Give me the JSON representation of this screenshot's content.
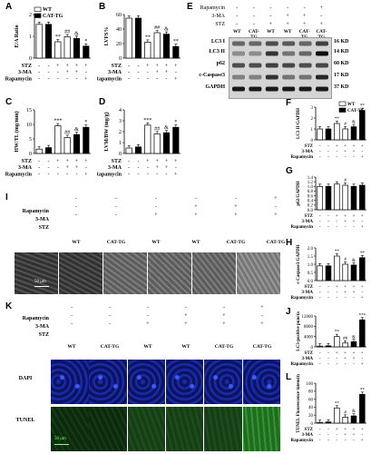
{
  "panels": {
    "A": {
      "letter": "A",
      "ylabel": "E/A Ratio",
      "yticks": [
        "0",
        "1",
        "2"
      ],
      "legend": [
        "WT",
        "CAT-TG"
      ],
      "row_labels": [
        "STZ",
        "3-MA",
        "Rapamycin"
      ],
      "rows": [
        [
          "-",
          "-",
          "+",
          "+",
          "+",
          "+"
        ],
        [
          "-",
          "-",
          "-",
          "+",
          "+",
          "-"
        ],
        [
          "-",
          "-",
          "-",
          "-",
          "-",
          "+"
        ]
      ],
      "marks": [
        "**",
        "##",
        "&",
        "*"
      ]
    },
    "B": {
      "letter": "B",
      "ylabel": "LVFS%",
      "yticks": [
        "0",
        "20",
        "40",
        "60"
      ],
      "row_labels": [
        "STZ",
        "3-MA",
        "Rapamycin"
      ],
      "rows": [
        [
          "-",
          "-",
          "+",
          "+",
          "+",
          "+"
        ],
        [
          "-",
          "-",
          "-",
          "+",
          "+",
          "-"
        ],
        [
          "-",
          "-",
          "-",
          "-",
          "-",
          "+"
        ]
      ],
      "marks": [
        "**",
        "##",
        "&",
        "**"
      ]
    },
    "C": {
      "letter": "C",
      "ylabel": "HW/TL (mg/mm)",
      "yticks": [
        "0",
        "5",
        "10",
        "15"
      ],
      "row_labels": [
        "STZ",
        "3-MA",
        "Rapamycin"
      ],
      "rows": [
        [
          "-",
          "-",
          "+",
          "+",
          "+",
          "+"
        ],
        [
          "-",
          "-",
          "-",
          "+",
          "+",
          "-"
        ],
        [
          "-",
          "-",
          "-",
          "-",
          "-",
          "+"
        ]
      ],
      "marks": [
        "***",
        "##",
        "&",
        "*"
      ]
    },
    "D": {
      "letter": "D",
      "ylabel": "LVM/BW (mg/g)",
      "yticks": [
        "0",
        "1",
        "2",
        "3",
        "4"
      ],
      "row_labels": [
        "STZ",
        "3-MA",
        "Rapamycin"
      ],
      "rows": [
        [
          "-",
          "-",
          "+",
          "+",
          "+",
          "+"
        ],
        [
          "-",
          "-",
          "-",
          "+",
          "+",
          "-"
        ],
        [
          "-",
          "-",
          "-",
          "-",
          "-",
          "+"
        ]
      ],
      "marks": [
        "***",
        "##",
        "&",
        "*"
      ]
    },
    "E": {
      "letter": "E",
      "row_labels": [
        "Rapamycin",
        "3-MA",
        "STZ"
      ],
      "rows": [
        [
          "-",
          "-",
          "-",
          "-",
          "-",
          "+"
        ],
        [
          "-",
          "-",
          "-",
          "+",
          "+",
          "-"
        ],
        [
          "-",
          "-",
          "+",
          "+",
          "+",
          "+"
        ]
      ],
      "cols": [
        "WT",
        "CAT-TG",
        "WT",
        "WT",
        "CAT-TG",
        "CAT-TG"
      ],
      "bands": [
        {
          "name": "LC3 I",
          "kd": "16 KD"
        },
        {
          "name": "LC3 II",
          "kd": "14 KD"
        },
        {
          "name": "p62",
          "kd": "60 KD"
        },
        {
          "name": "c-Caspase3",
          "kd": "17 KD"
        },
        {
          "name": "GAPDH",
          "kd": "37 KD"
        }
      ]
    },
    "F": {
      "letter": "F",
      "ylabel": "LC3 II/GAPDH",
      "yticks": [
        "0",
        "1",
        "2",
        "3"
      ],
      "legend": [
        "WT",
        "CAT-TG"
      ],
      "row_labels": [
        "STZ",
        "3-MA",
        "Rapamycin"
      ],
      "marks": [
        "**",
        "#",
        "&",
        "**"
      ]
    },
    "G": {
      "letter": "G",
      "ylabel": "p62/GAPDH",
      "yticks": [
        "0.0",
        "0.2",
        "0.4",
        "0.6",
        "0.8",
        "1.0",
        "1.2",
        "1.4"
      ],
      "row_labels": [
        "STZ",
        "3-MA",
        "Rapamycin"
      ],
      "marks": [
        "#"
      ]
    },
    "H": {
      "letter": "H",
      "ylabel": "c-Caspase3/GAPDH",
      "yticks": [
        "0.0",
        "0.5",
        "1.0",
        "1.5",
        "2.0"
      ],
      "row_labels": [
        "STZ",
        "3-MA",
        "Rapamycin"
      ],
      "marks": [
        "**",
        "#",
        "&",
        "**"
      ]
    },
    "I": {
      "letter": "I",
      "row_labels": [
        "Rapamycin",
        "3-MA",
        "STZ"
      ],
      "rows": [
        [
          "-",
          "-",
          "-",
          "-",
          "-",
          "+"
        ],
        [
          "-",
          "-",
          "-",
          "+",
          "+",
          "-"
        ],
        [
          "-",
          "-",
          "+",
          "+",
          "+",
          "+"
        ]
      ],
      "cols": [
        "WT",
        "CAT-TG",
        "WT",
        "WT",
        "CAT-TG",
        "CAT-TG"
      ],
      "scalebar": "50 μm"
    },
    "J": {
      "letter": "J",
      "ylabel": "LC3-positive puncta",
      "yticks": [
        "0",
        "4000",
        "8000",
        "12000"
      ],
      "row_labels": [
        "STZ",
        "3-MA",
        "Rapamycin"
      ],
      "marks": [
        "**",
        "##",
        "&",
        "***"
      ]
    },
    "K": {
      "letter": "K",
      "row_labels": [
        "Rapamycin",
        "3-MA",
        "STZ"
      ],
      "rows": [
        [
          "-",
          "-",
          "-",
          "-",
          "-",
          "+"
        ],
        [
          "-",
          "-",
          "-",
          "+",
          "+",
          "-"
        ],
        [
          "-",
          "-",
          "+",
          "+",
          "+",
          "+"
        ]
      ],
      "cols": [
        "WT",
        "CAT-TG",
        "WT",
        "WT",
        "CAT-TG",
        "CAT-TG"
      ],
      "stains": [
        "DAPI",
        "TUNEL"
      ],
      "scalebar": "50 μm"
    },
    "L": {
      "letter": "L",
      "ylabel": "TUNEL Fluorescence intensity",
      "yticks": [
        "0",
        "20",
        "40",
        "60",
        "80",
        "100"
      ],
      "row_labels": [
        "STZ",
        "3-MA",
        "Rapamycin"
      ],
      "marks": [
        "**",
        "#",
        "&",
        "**"
      ]
    }
  },
  "chart_data": [
    {
      "type": "bar",
      "panel": "A",
      "ylabel": "E/A Ratio",
      "ylim": [
        0,
        2
      ],
      "series": [
        {
          "name": "WT",
          "values": [
            1.55,
            null,
            0.75,
            0.98,
            null,
            null
          ]
        },
        {
          "name": "CAT-TG",
          "values": [
            null,
            1.55,
            null,
            null,
            0.9,
            0.55
          ]
        }
      ]
    },
    {
      "type": "bar",
      "panel": "B",
      "ylabel": "LVFS%",
      "ylim": [
        0,
        60
      ],
      "series": [
        {
          "name": "WT",
          "values": [
            55,
            null,
            22,
            35,
            null,
            null
          ]
        },
        {
          "name": "CAT-TG",
          "values": [
            null,
            55,
            null,
            null,
            33,
            16
          ]
        }
      ]
    },
    {
      "type": "bar",
      "panel": "C",
      "ylabel": "HW/TL (mg/mm)",
      "ylim": [
        0,
        15
      ],
      "series": [
        {
          "name": "WT",
          "values": [
            1.5,
            null,
            9.5,
            5.5,
            null,
            null
          ]
        },
        {
          "name": "CAT-TG",
          "values": [
            null,
            2.0,
            null,
            null,
            6.5,
            9.0
          ]
        }
      ]
    },
    {
      "type": "bar",
      "panel": "D",
      "ylabel": "LVM/BW (mg/g)",
      "ylim": [
        0,
        4
      ],
      "series": [
        {
          "name": "WT",
          "values": [
            0.5,
            null,
            2.6,
            1.8,
            null,
            null
          ]
        },
        {
          "name": "CAT-TG",
          "values": [
            null,
            0.6,
            null,
            null,
            1.9,
            2.4
          ]
        }
      ]
    },
    {
      "type": "bar",
      "panel": "F",
      "ylabel": "LC3 II/GAPDH",
      "ylim": [
        0,
        3
      ],
      "series": [
        {
          "name": "WT",
          "values": [
            1.0,
            null,
            1.5,
            1.0,
            null,
            null
          ]
        },
        {
          "name": "CAT-TG",
          "values": [
            null,
            1.0,
            null,
            null,
            1.2,
            2.7
          ]
        }
      ]
    },
    {
      "type": "bar",
      "panel": "G",
      "ylabel": "p62/GAPDH",
      "ylim": [
        0,
        1.4
      ],
      "series": [
        {
          "name": "WT",
          "values": [
            1.0,
            null,
            1.1,
            1.05,
            null,
            null
          ]
        },
        {
          "name": "CAT-TG",
          "values": [
            null,
            1.0,
            null,
            null,
            1.0,
            1.05
          ]
        }
      ]
    },
    {
      "type": "bar",
      "panel": "H",
      "ylabel": "c-Caspase3/GAPDH",
      "ylim": [
        0,
        2.0
      ],
      "series": [
        {
          "name": "WT",
          "values": [
            0.9,
            null,
            1.5,
            1.0,
            null,
            null
          ]
        },
        {
          "name": "CAT-TG",
          "values": [
            null,
            0.9,
            null,
            null,
            0.95,
            1.4
          ]
        }
      ]
    },
    {
      "type": "bar",
      "panel": "J",
      "ylabel": "LC3-positive puncta",
      "ylim": [
        0,
        12000
      ],
      "series": [
        {
          "name": "WT",
          "values": [
            300,
            null,
            4000,
            1500,
            null,
            null
          ]
        },
        {
          "name": "CAT-TG",
          "values": [
            null,
            400,
            null,
            null,
            2000,
            10500
          ]
        }
      ]
    },
    {
      "type": "bar",
      "panel": "L",
      "ylabel": "TUNEL Fluorescence intensity",
      "ylim": [
        0,
        100
      ],
      "series": [
        {
          "name": "WT",
          "values": [
            2,
            null,
            38,
            15,
            null,
            null
          ]
        },
        {
          "name": "CAT-TG",
          "values": [
            null,
            3,
            null,
            null,
            18,
            72
          ]
        }
      ]
    }
  ]
}
